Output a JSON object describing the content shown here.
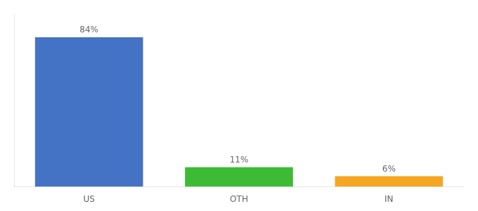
{
  "chart_data": {
    "type": "bar",
    "categories": [
      "US",
      "OTH",
      "IN"
    ],
    "values": [
      84,
      11,
      6
    ],
    "value_labels": [
      "84%",
      "11%",
      "6%"
    ],
    "colors": [
      "#4472c4",
      "#3dbb35",
      "#f5a623"
    ],
    "ylim": [
      0,
      97
    ],
    "data_labels": true,
    "tick_labels": "x",
    "grid": false
  }
}
